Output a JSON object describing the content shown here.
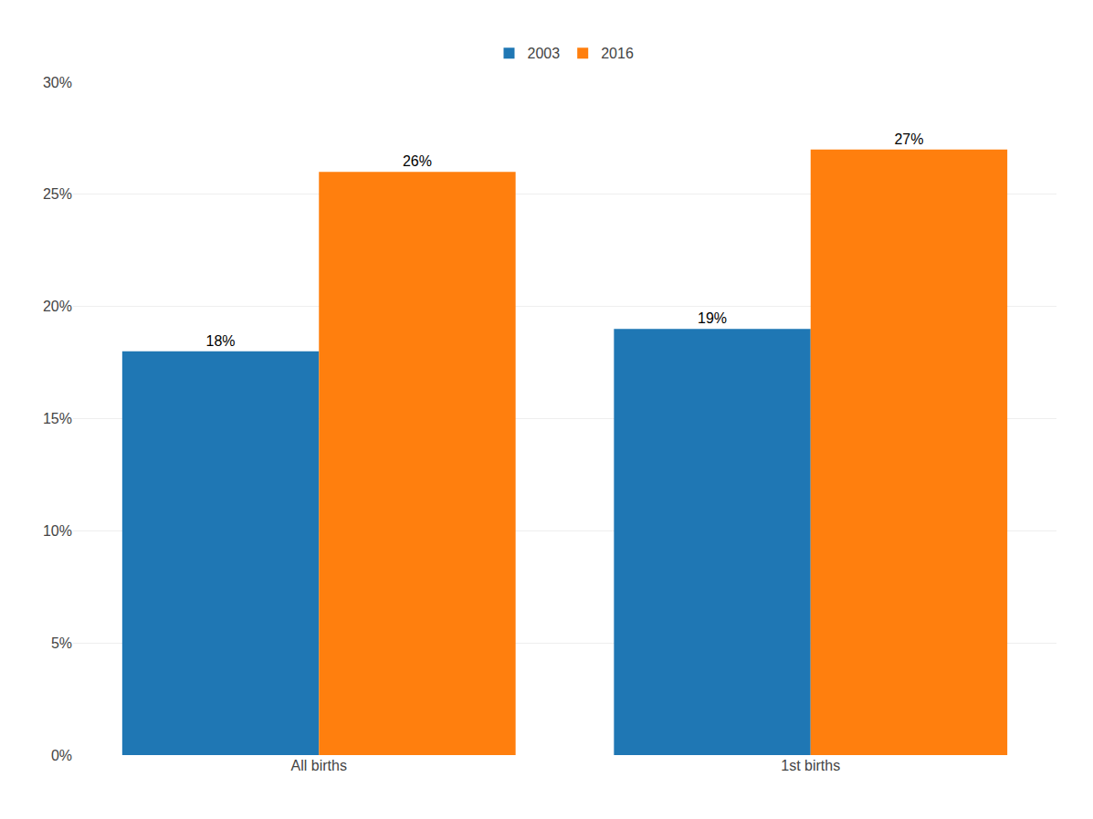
{
  "chart_data": {
    "type": "bar",
    "categories": [
      "All births",
      "1st births"
    ],
    "series": [
      {
        "name": "2003",
        "values": [
          18,
          19
        ],
        "value_labels": [
          "18%",
          "19%"
        ]
      },
      {
        "name": "2016",
        "values": [
          26,
          27
        ],
        "value_labels": [
          "26%",
          "27%"
        ]
      }
    ],
    "ylim": [
      0,
      30
    ],
    "yticks": [
      {
        "value": 0,
        "label": "0%"
      },
      {
        "value": 5,
        "label": "5%"
      },
      {
        "value": 10,
        "label": "10%"
      },
      {
        "value": 15,
        "label": "15%"
      },
      {
        "value": 20,
        "label": "20%"
      },
      {
        "value": 25,
        "label": "25%"
      },
      {
        "value": 30,
        "label": "30%"
      }
    ],
    "grid": true,
    "data_labels": true,
    "legend": "top"
  }
}
